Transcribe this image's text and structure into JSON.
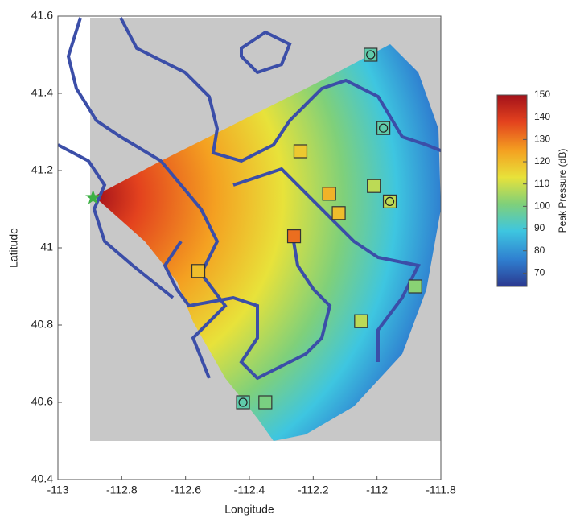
{
  "chart_data": {
    "type": "scatter",
    "xlabel": "Longitude",
    "ylabel": "Latitude",
    "xlim": [
      -113,
      -111.8
    ],
    "xticks": [
      -113,
      -112.8,
      -112.6,
      -112.4,
      -112.2,
      -112,
      -111.8
    ],
    "ylim": [
      40.4,
      41.6
    ],
    "yticks": [
      40.4,
      40.6,
      40.8,
      41,
      41.2,
      41.4,
      41.6
    ],
    "colorbar": {
      "label": "Peak Pressure (dB)",
      "clim": [
        64,
        150
      ],
      "ticks": [
        70,
        80,
        90,
        100,
        110,
        120,
        130,
        140,
        150
      ],
      "colormap": [
        "#2b3990",
        "#2f7fd0",
        "#3ec6e0",
        "#7fd07a",
        "#e8e23a",
        "#f4a021",
        "#e3421e",
        "#a3111a"
      ]
    },
    "stations": {
      "x": [
        -112.02,
        -111.98,
        -112.24,
        -112.15,
        -112.12,
        -112.01,
        -111.96,
        -112.26,
        -112.56,
        -111.88,
        -112.05,
        -112.42,
        -112.35
      ],
      "y": [
        41.5,
        41.31,
        41.25,
        41.14,
        41.09,
        41.16,
        41.12,
        41.03,
        40.94,
        40.9,
        40.81,
        40.6,
        40.6
      ],
      "values": [
        95,
        95,
        118,
        122,
        120,
        108,
        108,
        132,
        120,
        102,
        108,
        95,
        100
      ],
      "circled": [
        true,
        true,
        false,
        false,
        false,
        false,
        true,
        false,
        false,
        false,
        false,
        true,
        false
      ]
    },
    "source": {
      "x": -112.89,
      "y": 41.13,
      "color": "#3cb043"
    }
  }
}
